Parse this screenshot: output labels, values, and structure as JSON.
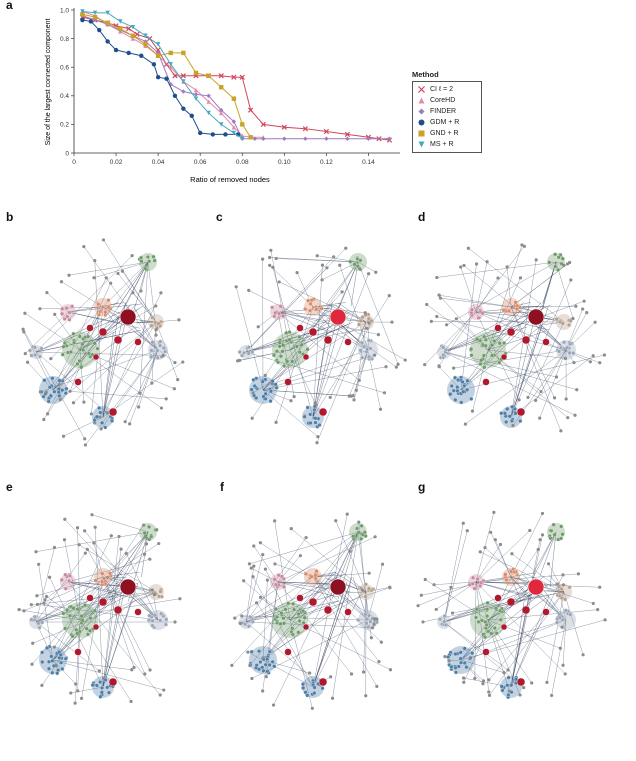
{
  "panel_labels": {
    "a": "a",
    "b": "b",
    "c": "c",
    "d": "d",
    "e": "e",
    "f": "f",
    "g": "g"
  },
  "legend": {
    "title": "Method",
    "items": [
      {
        "label": "CI ℓ = 2",
        "color": "#d2455a",
        "marker": "x"
      },
      {
        "label": "CoreHD",
        "color": "#e48aa8",
        "marker": "triangle-up"
      },
      {
        "label": "FINDER",
        "color": "#9c7cc0",
        "marker": "diamond"
      },
      {
        "label": "GDM + R",
        "color": "#1f4e8c",
        "marker": "circle"
      },
      {
        "label": "GND + R",
        "color": "#c9a227",
        "marker": "square"
      },
      {
        "label": "MS + R",
        "color": "#45a8c4",
        "marker": "triangle-down"
      }
    ]
  },
  "chart_data": {
    "type": "line",
    "xlabel": "Ratio of removed nodes",
    "ylabel": "Size of the largest connected component",
    "xlim": [
      0,
      0.155
    ],
    "ylim": [
      0,
      1.0
    ],
    "xticks": [
      "0",
      "0.02",
      "0.04",
      "0.06",
      "0.08",
      "0.10",
      "0.12",
      "0.14"
    ],
    "xtick_values": [
      0,
      0.02,
      0.04,
      0.06,
      0.08,
      0.1,
      0.12,
      0.14
    ],
    "yticks": [
      "0",
      "0.2",
      "0.4",
      "0.6",
      "0.8",
      "1.0"
    ],
    "ytick_values": [
      0,
      0.2,
      0.4,
      0.6,
      0.8,
      1.0
    ],
    "grid": false,
    "legend_position": "right",
    "series": [
      {
        "name": "CI ℓ = 2",
        "color": "#d2455a",
        "marker": "x",
        "x": [
          0.004,
          0.01,
          0.016,
          0.02,
          0.026,
          0.03,
          0.036,
          0.04,
          0.044,
          0.048,
          0.052,
          0.058,
          0.064,
          0.07,
          0.076,
          0.08,
          0.084,
          0.09,
          0.1,
          0.11,
          0.12,
          0.13,
          0.14,
          0.145,
          0.15
        ],
        "y": [
          0.95,
          0.93,
          0.91,
          0.89,
          0.87,
          0.83,
          0.8,
          0.72,
          0.62,
          0.54,
          0.54,
          0.54,
          0.54,
          0.54,
          0.53,
          0.53,
          0.3,
          0.2,
          0.18,
          0.17,
          0.15,
          0.13,
          0.11,
          0.1,
          0.09
        ]
      },
      {
        "name": "CoreHD",
        "color": "#e48aa8",
        "marker": "triangle-up",
        "x": [
          0.004,
          0.01,
          0.016,
          0.022,
          0.028,
          0.034,
          0.04,
          0.046,
          0.052,
          0.058,
          0.064,
          0.07,
          0.076,
          0.08,
          0.084,
          0.09
        ],
        "y": [
          0.99,
          0.96,
          0.9,
          0.85,
          0.8,
          0.75,
          0.68,
          0.6,
          0.5,
          0.44,
          0.36,
          0.28,
          0.18,
          0.12,
          0.11,
          0.11
        ]
      },
      {
        "name": "FINDER",
        "color": "#9c7cc0",
        "marker": "diamond",
        "x": [
          0.004,
          0.01,
          0.016,
          0.022,
          0.028,
          0.034,
          0.04,
          0.046,
          0.052,
          0.058,
          0.064,
          0.07,
          0.076,
          0.08,
          0.086,
          0.09,
          0.1,
          0.11,
          0.12,
          0.13,
          0.14,
          0.15
        ],
        "y": [
          0.96,
          0.93,
          0.9,
          0.86,
          0.82,
          0.78,
          0.7,
          0.48,
          0.43,
          0.41,
          0.4,
          0.3,
          0.22,
          0.1,
          0.1,
          0.1,
          0.1,
          0.1,
          0.1,
          0.1,
          0.1,
          0.1
        ]
      },
      {
        "name": "GDM + R",
        "color": "#1f4e8c",
        "marker": "circle",
        "x": [
          0.004,
          0.008,
          0.012,
          0.016,
          0.02,
          0.026,
          0.032,
          0.038,
          0.04,
          0.044,
          0.048,
          0.052,
          0.056,
          0.06,
          0.066,
          0.072,
          0.078
        ],
        "y": [
          0.93,
          0.92,
          0.86,
          0.78,
          0.72,
          0.7,
          0.68,
          0.62,
          0.53,
          0.52,
          0.4,
          0.31,
          0.26,
          0.14,
          0.13,
          0.13,
          0.13
        ]
      },
      {
        "name": "GND + R",
        "color": "#c9a227",
        "marker": "square",
        "x": [
          0.004,
          0.01,
          0.016,
          0.022,
          0.028,
          0.034,
          0.04,
          0.046,
          0.052,
          0.058,
          0.064,
          0.07,
          0.076,
          0.08,
          0.084
        ],
        "y": [
          0.97,
          0.95,
          0.91,
          0.87,
          0.82,
          0.76,
          0.68,
          0.7,
          0.7,
          0.56,
          0.54,
          0.46,
          0.38,
          0.2,
          0.11
        ]
      },
      {
        "name": "MS + R",
        "color": "#45a8c4",
        "marker": "triangle-down",
        "x": [
          0.004,
          0.01,
          0.016,
          0.022,
          0.028,
          0.034,
          0.04,
          0.046,
          0.052,
          0.058,
          0.064,
          0.07,
          0.076,
          0.08
        ],
        "y": [
          0.99,
          0.98,
          0.98,
          0.92,
          0.88,
          0.82,
          0.76,
          0.62,
          0.5,
          0.38,
          0.28,
          0.2,
          0.14,
          0.1
        ]
      }
    ]
  },
  "networks": [
    {
      "panel": "b",
      "hub_color": "#8e1021"
    },
    {
      "panel": "c",
      "hub_color": "#e0283c"
    },
    {
      "panel": "d",
      "hub_color": "#8e1021"
    },
    {
      "panel": "e",
      "hub_color": "#8e1021"
    },
    {
      "panel": "f",
      "hub_color": "#8e1021"
    },
    {
      "panel": "g",
      "hub_color": "#e0283c"
    }
  ]
}
